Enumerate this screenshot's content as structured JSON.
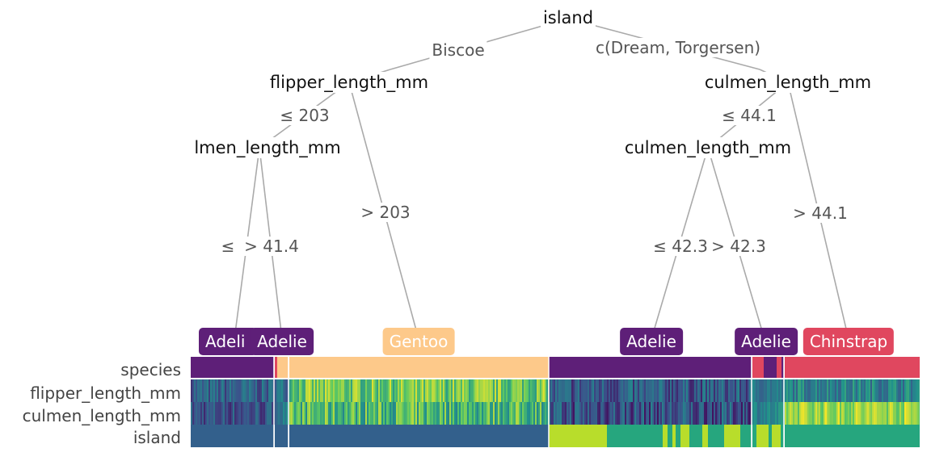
{
  "tree": {
    "nodes": [
      {
        "id": "root",
        "label": "island"
      },
      {
        "id": "n_flip",
        "label": "flipper_length_mm"
      },
      {
        "id": "n_culmen_r",
        "label": "culmen_length_mm"
      },
      {
        "id": "n_culmen_l",
        "label": "lmen_length_mm"
      },
      {
        "id": "n_culmen_r2",
        "label": "culmen_length_mm"
      }
    ],
    "edges": [
      {
        "id": "e_biscoe",
        "label": "Biscoe"
      },
      {
        "id": "e_dream",
        "label": "c(Dream, Torgersen)"
      },
      {
        "id": "e_le203",
        "label": "≤ 203"
      },
      {
        "id": "e_gt203",
        "label": "> 203"
      },
      {
        "id": "e_le44",
        "label": "≤ 44.1"
      },
      {
        "id": "e_gt44",
        "label": "> 44.1"
      },
      {
        "id": "e_le41",
        "label": "≤"
      },
      {
        "id": "e_gt41",
        "label": "> 41.4"
      },
      {
        "id": "e_le42",
        "label": "≤ 42.3"
      },
      {
        "id": "e_gt42",
        "label": "> 42.3"
      }
    ],
    "leaves": [
      {
        "id": "leaf1",
        "label": "Adeli",
        "color": "#5e1f78"
      },
      {
        "id": "leaf2",
        "label": "Adelie",
        "color": "#5e1f78"
      },
      {
        "id": "leaf3",
        "label": "Gentoo",
        "color": "#fdc98a"
      },
      {
        "id": "leaf4",
        "label": "Adelie",
        "color": "#5e1f78"
      },
      {
        "id": "leaf5",
        "label": "Adelie",
        "color": "#5e1f78"
      },
      {
        "id": "leaf6",
        "label": "Chinstrap",
        "color": "#e0475f"
      }
    ]
  },
  "heatmap": {
    "rows": [
      "species",
      "flipper_length_mm",
      "culmen_length_mm",
      "island"
    ],
    "palette": {
      "adelie": "#5e1f78",
      "gentoo": "#fdc98a",
      "chinstrap": "#e0475f",
      "island_biscoe": "#33608c",
      "island_dream": "#26a67e",
      "island_torgersen": "#b8dd2b"
    }
  }
}
